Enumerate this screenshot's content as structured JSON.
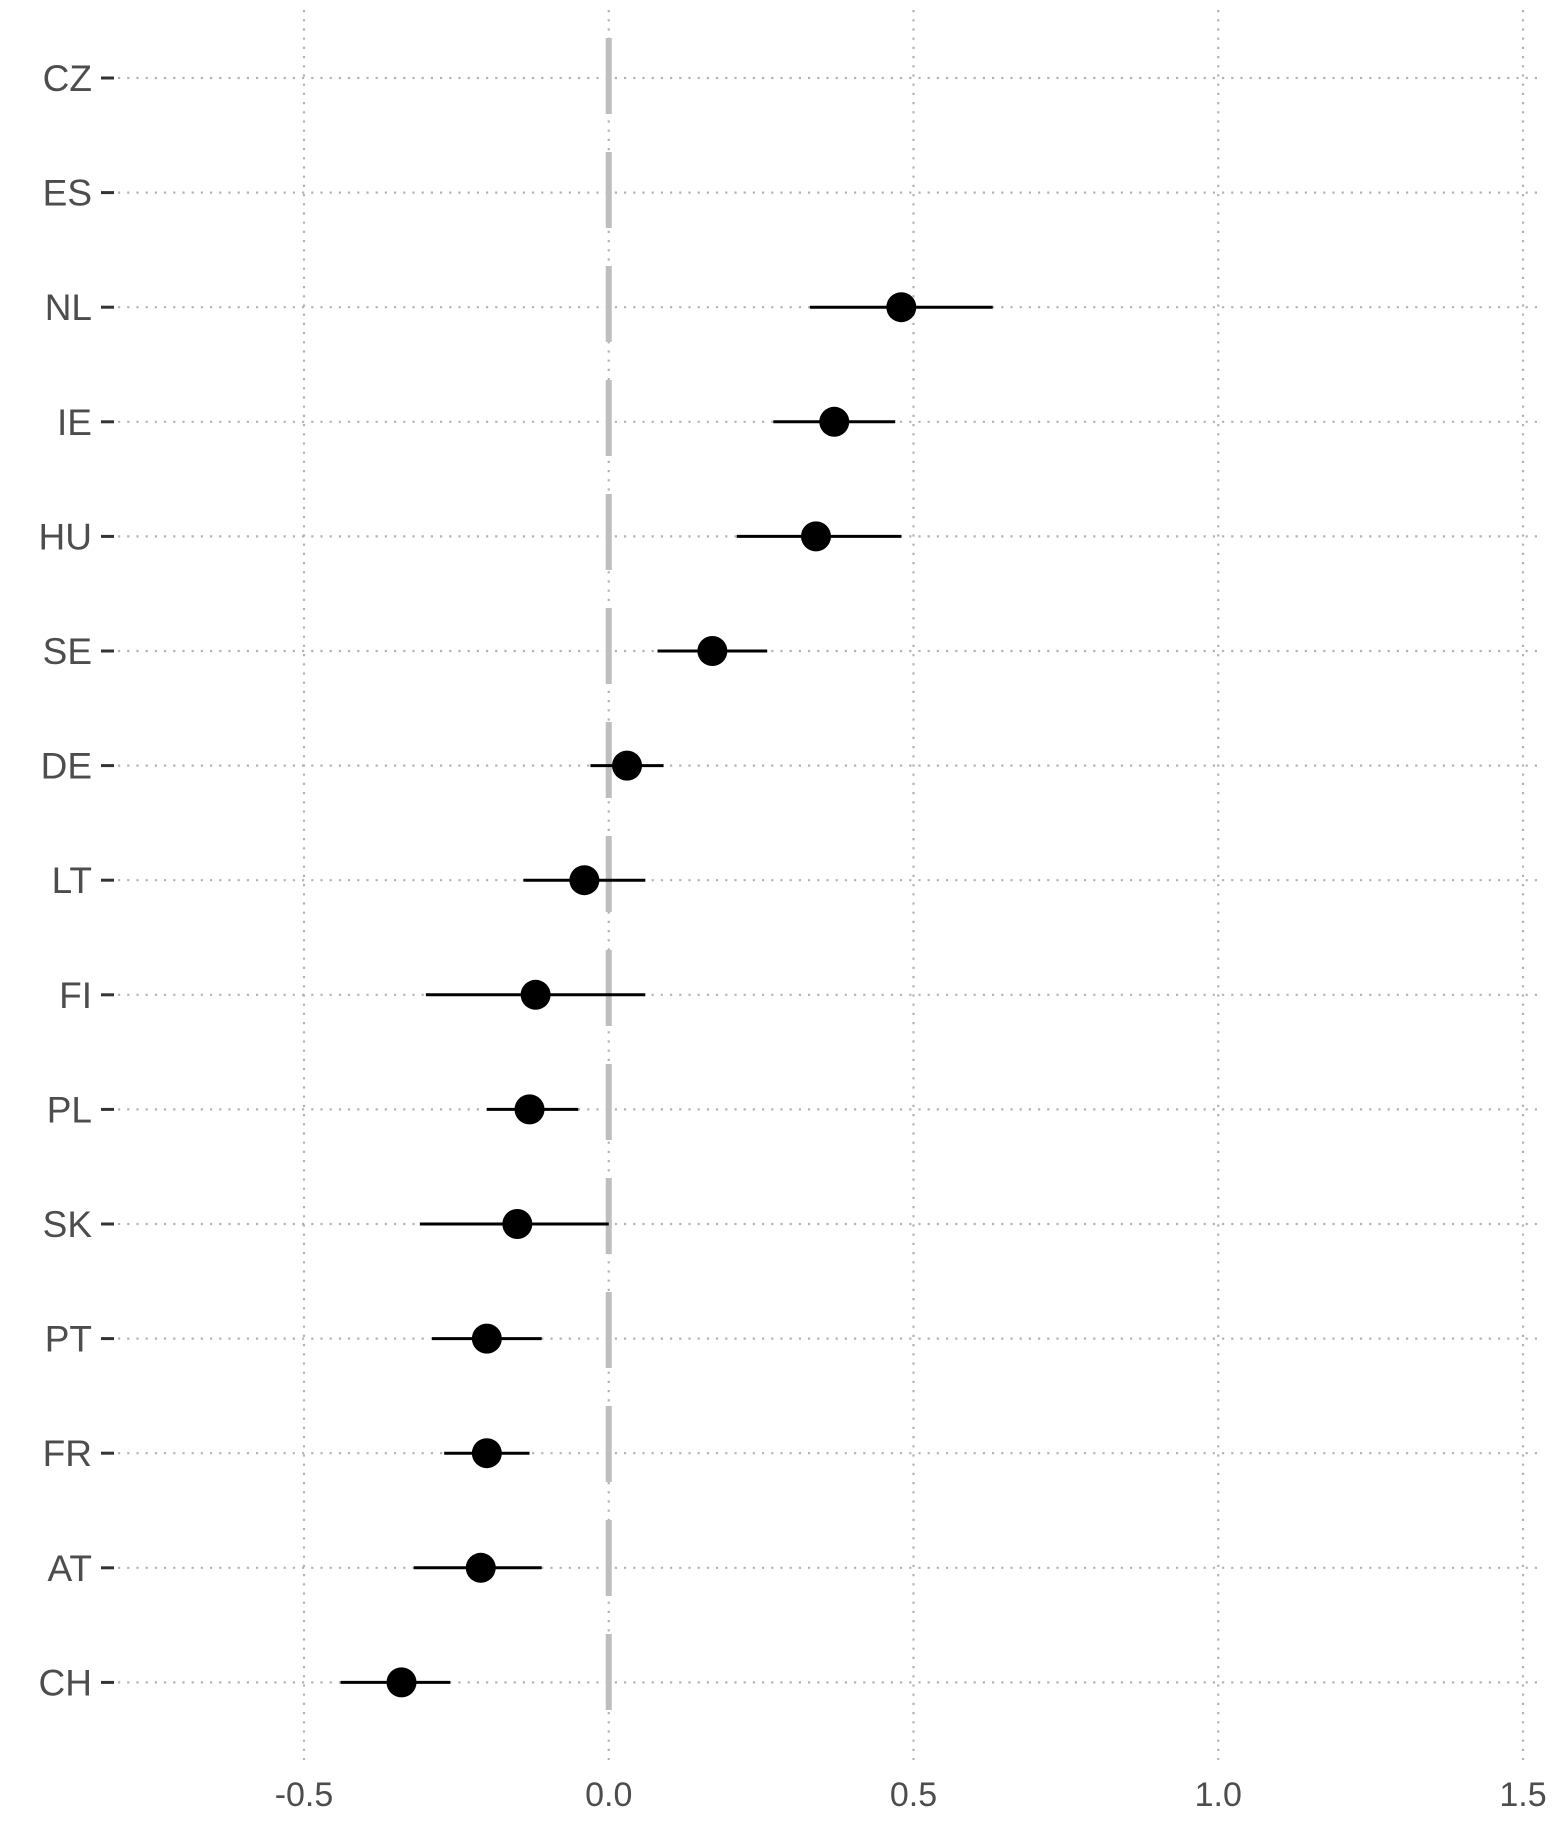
{
  "chart_data": {
    "type": "scatter",
    "title": "",
    "xlabel": "",
    "ylabel": "",
    "xlim": [
      -0.5,
      1.5
    ],
    "x_ticks": [
      -0.5,
      0.0,
      0.5,
      1.0,
      1.5
    ],
    "x_tick_labels": [
      "-0.5",
      "0.0",
      "0.5",
      "1.0",
      "1.5"
    ],
    "reference_line": 0.0,
    "grid": true,
    "series": [
      {
        "points": [
          {
            "label": "CZ",
            "estimate": null,
            "lower": null,
            "upper": null
          },
          {
            "label": "ES",
            "estimate": null,
            "lower": null,
            "upper": null
          },
          {
            "label": "NL",
            "estimate": 0.48,
            "lower": 0.33,
            "upper": 0.63
          },
          {
            "label": "IE",
            "estimate": 0.37,
            "lower": 0.27,
            "upper": 0.47
          },
          {
            "label": "HU",
            "estimate": 0.34,
            "lower": 0.21,
            "upper": 0.48
          },
          {
            "label": "SE",
            "estimate": 0.17,
            "lower": 0.08,
            "upper": 0.26
          },
          {
            "label": "DE",
            "estimate": 0.03,
            "lower": -0.03,
            "upper": 0.09
          },
          {
            "label": "LT",
            "estimate": -0.04,
            "lower": -0.14,
            "upper": 0.06
          },
          {
            "label": "FI",
            "estimate": -0.12,
            "lower": -0.3,
            "upper": 0.06
          },
          {
            "label": "PL",
            "estimate": -0.13,
            "lower": -0.2,
            "upper": -0.05
          },
          {
            "label": "SK",
            "estimate": -0.15,
            "lower": -0.31,
            "upper": 0.0
          },
          {
            "label": "PT",
            "estimate": -0.2,
            "lower": -0.29,
            "upper": -0.11
          },
          {
            "label": "FR",
            "estimate": -0.2,
            "lower": -0.27,
            "upper": -0.13
          },
          {
            "label": "AT",
            "estimate": -0.21,
            "lower": -0.32,
            "upper": -0.11
          },
          {
            "label": "CH",
            "estimate": -0.34,
            "lower": -0.44,
            "upper": -0.26
          }
        ]
      }
    ],
    "colors": {
      "point": "#000000",
      "interval": "#000000",
      "reference_line": "#bebebe",
      "grid": "#b3b3b3",
      "tick_label": "#4d4d4d",
      "tick_mark": "#333333"
    }
  }
}
